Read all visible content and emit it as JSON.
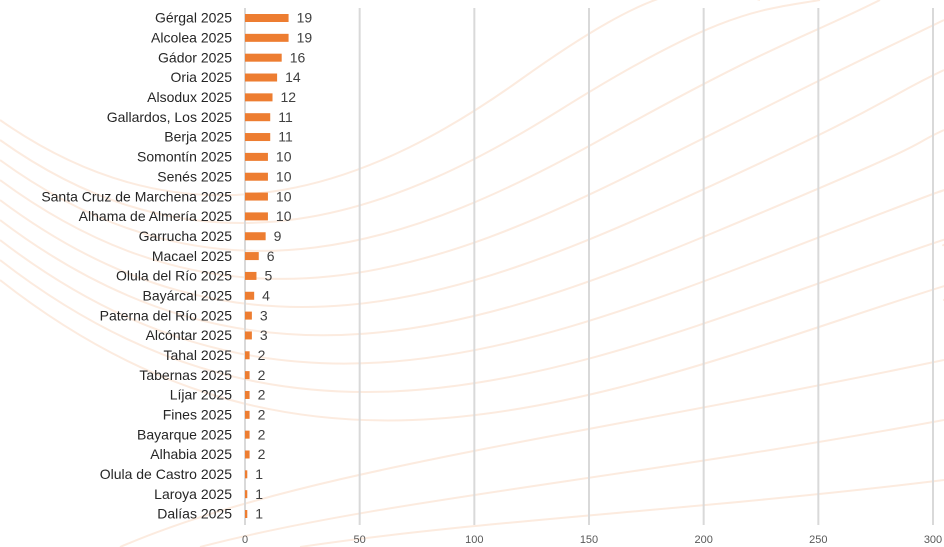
{
  "chart_data": {
    "type": "bar",
    "orientation": "horizontal",
    "categories": [
      "Gérgal 2025",
      "Alcolea 2025",
      "Gádor 2025",
      "Oria 2025",
      "Alsodux 2025",
      "Gallardos, Los 2025",
      "Berja 2025",
      "Somontín 2025",
      "Senés 2025",
      "Santa Cruz de Marchena 2025",
      "Alhama de Almería 2025",
      "Garrucha 2025",
      "Macael 2025",
      "Olula del Río 2025",
      "Bayárcal 2025",
      "Paterna del Río 2025",
      "Alcóntar 2025",
      "Tahal 2025",
      "Tabernas 2025",
      "Líjar 2025",
      "Fines 2025",
      "Bayarque 2025",
      "Alhabia 2025",
      "Olula de Castro 2025",
      "Laroya 2025",
      "Dalías 2025"
    ],
    "values": [
      19,
      19,
      16,
      14,
      12,
      11,
      11,
      10,
      10,
      10,
      10,
      9,
      6,
      5,
      4,
      3,
      3,
      2,
      2,
      2,
      2,
      2,
      2,
      1,
      1,
      1
    ],
    "color": "#ed7d31",
    "xlim": [
      0,
      300
    ],
    "xticks": [
      0,
      50,
      100,
      150,
      200,
      250,
      300
    ],
    "grid": true,
    "data_labels": true
  }
}
